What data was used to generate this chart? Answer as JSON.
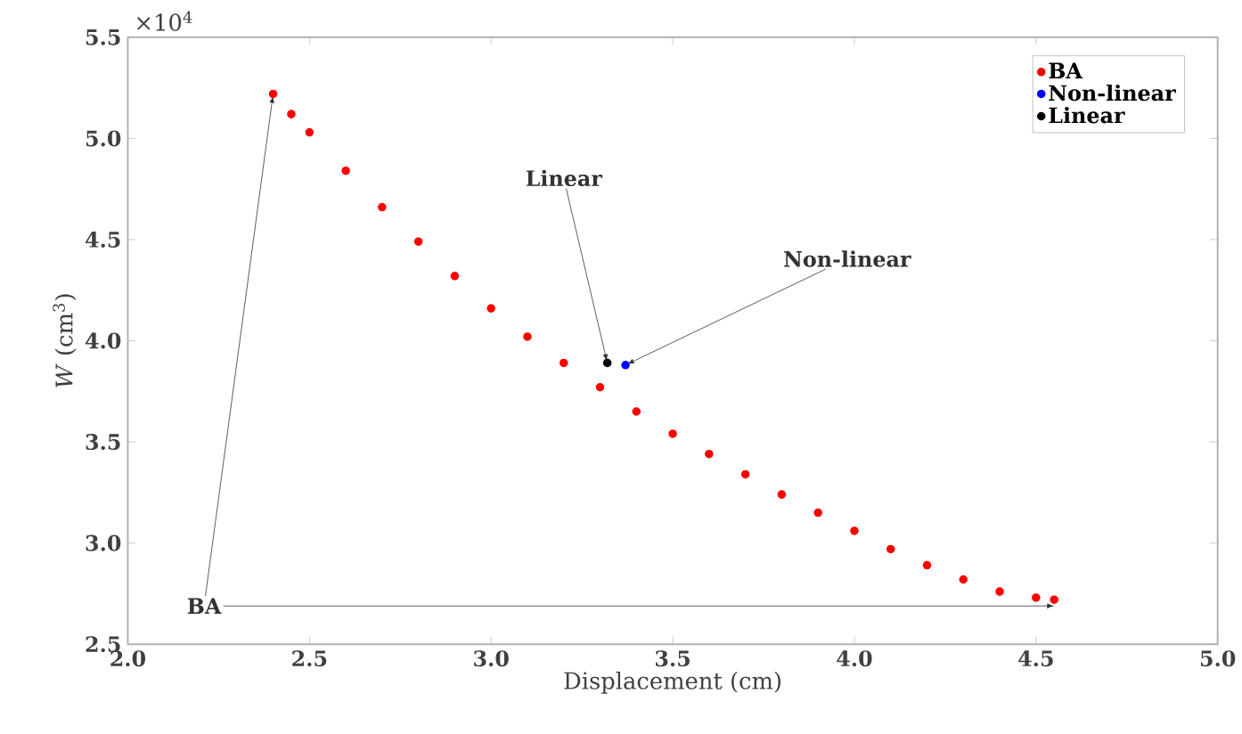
{
  "chart_data": {
    "type": "scatter",
    "xlabel": "Displacement (cm)",
    "ylabel": "*W* (cm$^{3}$)",
    "xlim": [
      2.0,
      5.0
    ],
    "xticks": [
      {
        "value": 2.0,
        "label": "2.0"
      },
      {
        "value": 2.5,
        "label": "2.5"
      },
      {
        "value": 3.0,
        "label": "3.0"
      },
      {
        "value": 3.5,
        "label": "3.5"
      },
      {
        "value": 4.0,
        "label": "4.0"
      },
      {
        "value": 4.5,
        "label": "4.5"
      },
      {
        "value": 5.0,
        "label": "5.0"
      }
    ],
    "ylim": [
      2.5,
      5.5
    ],
    "yticks": [
      {
        "value": 2.5,
        "label": "2.5"
      },
      {
        "value": 3.0,
        "label": "3.0"
      },
      {
        "value": 3.5,
        "label": "3.5"
      },
      {
        "value": 4.0,
        "label": "4.0"
      },
      {
        "value": 4.5,
        "label": "4.5"
      },
      {
        "value": 5.0,
        "label": "5.0"
      },
      {
        "value": 5.5,
        "label": "5.5"
      }
    ],
    "legend": "top right",
    "marker": "circle",
    "grid": false,
    "series": [
      {
        "name": "BA",
        "color": "#ff0000",
        "x": [
          2.4,
          2.45,
          2.5,
          2.6,
          2.7,
          2.8,
          2.9,
          3.0,
          3.1,
          3.2,
          3.3,
          3.4,
          3.5,
          3.6,
          3.7,
          3.8,
          3.9,
          4.0,
          4.1,
          4.2,
          4.3,
          4.4,
          4.5,
          4.55
        ],
        "values": [
          5.22,
          5.12,
          5.03,
          4.84,
          4.66,
          4.49,
          4.32,
          4.16,
          4.02,
          3.89,
          3.77,
          3.65,
          3.54,
          3.44,
          3.34,
          3.24,
          3.15,
          3.06,
          2.97,
          2.89,
          2.82,
          2.76,
          2.73,
          2.72
        ]
      },
      {
        "name": "Non-linear",
        "color": "#0000ff",
        "x": [
          3.37
        ],
        "values": [
          3.88
        ]
      },
      {
        "name": "Linear",
        "color": "#000000",
        "x": [
          3.32
        ],
        "values": [
          3.89
        ]
      }
    ],
    "annotations": [
      "×10$^{4}$",
      {
        "text": "BA",
        "x": 2.4,
        "y": 5.22
      },
      {
        "text": "Linear",
        "x": 3.32,
        "y": 3.89
      },
      {
        "text": "Non-linear",
        "x": 3.37,
        "y": 3.88
      }
    ]
  }
}
